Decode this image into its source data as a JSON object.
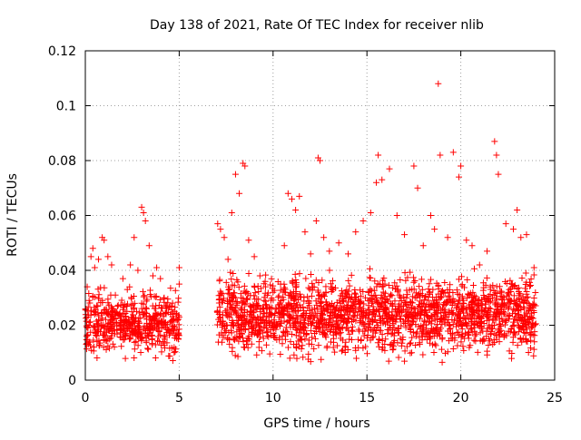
{
  "chart_data": {
    "type": "scatter",
    "title": "Day 138 of 2021, Rate Of TEC Index for receiver nlib",
    "xlabel": "GPS time / hours",
    "ylabel": "ROTI / TECUs",
    "xlim": [
      0,
      25
    ],
    "ylim": [
      0,
      0.12
    ],
    "x_ticks": [
      0,
      5,
      10,
      15,
      20,
      25
    ],
    "x_tick_labels": [
      "0",
      "5",
      "10",
      "15",
      "20",
      "25"
    ],
    "y_ticks": [
      0,
      0.02,
      0.04,
      0.06,
      0.08,
      0.1,
      0.12
    ],
    "y_tick_labels": [
      "0",
      "0.02",
      "0.04",
      "0.06",
      "0.08",
      "0.1",
      "0.12"
    ],
    "grid": true,
    "marker": "plus",
    "series": [
      {
        "name": "ROTI",
        "color": "#ff0000",
        "points": [
          [
            0.05,
            0.013
          ],
          [
            0.1,
            0.034
          ],
          [
            0.2,
            0.029
          ],
          [
            0.3,
            0.045
          ],
          [
            0.4,
            0.048
          ],
          [
            0.5,
            0.041
          ],
          [
            0.7,
            0.044
          ],
          [
            0.9,
            0.052
          ],
          [
            1.0,
            0.051
          ],
          [
            1.2,
            0.045
          ],
          [
            1.4,
            0.042
          ],
          [
            1.6,
            0.031
          ],
          [
            2.0,
            0.037
          ],
          [
            2.4,
            0.042
          ],
          [
            2.6,
            0.052
          ],
          [
            2.8,
            0.04
          ],
          [
            3.0,
            0.063
          ],
          [
            3.1,
            0.061
          ],
          [
            3.2,
            0.058
          ],
          [
            3.4,
            0.049
          ],
          [
            3.6,
            0.038
          ],
          [
            3.8,
            0.041
          ],
          [
            4.0,
            0.037
          ],
          [
            4.2,
            0.03
          ],
          [
            4.5,
            0.027
          ],
          [
            4.9,
            0.022
          ],
          [
            5.0,
            0.041
          ],
          [
            5.0,
            0.035
          ],
          [
            7.05,
            0.057
          ],
          [
            7.2,
            0.055
          ],
          [
            7.4,
            0.052
          ],
          [
            7.6,
            0.044
          ],
          [
            7.8,
            0.061
          ],
          [
            8.0,
            0.075
          ],
          [
            8.2,
            0.068
          ],
          [
            8.4,
            0.079
          ],
          [
            8.5,
            0.078
          ],
          [
            8.7,
            0.051
          ],
          [
            9.0,
            0.045
          ],
          [
            9.3,
            0.038
          ],
          [
            9.6,
            0.034
          ],
          [
            10.0,
            0.032
          ],
          [
            10.4,
            0.035
          ],
          [
            10.6,
            0.049
          ],
          [
            10.8,
            0.068
          ],
          [
            11.0,
            0.066
          ],
          [
            11.2,
            0.062
          ],
          [
            11.4,
            0.067
          ],
          [
            11.7,
            0.054
          ],
          [
            12.0,
            0.046
          ],
          [
            12.3,
            0.058
          ],
          [
            12.4,
            0.081
          ],
          [
            12.5,
            0.08
          ],
          [
            12.7,
            0.052
          ],
          [
            13.0,
            0.047
          ],
          [
            13.5,
            0.05
          ],
          [
            14.0,
            0.046
          ],
          [
            14.4,
            0.054
          ],
          [
            14.8,
            0.058
          ],
          [
            15.2,
            0.061
          ],
          [
            15.5,
            0.072
          ],
          [
            15.6,
            0.082
          ],
          [
            15.8,
            0.073
          ],
          [
            16.2,
            0.077
          ],
          [
            16.6,
            0.06
          ],
          [
            17.0,
            0.053
          ],
          [
            17.5,
            0.078
          ],
          [
            17.7,
            0.07
          ],
          [
            18.0,
            0.049
          ],
          [
            18.4,
            0.06
          ],
          [
            18.6,
            0.055
          ],
          [
            18.8,
            0.108
          ],
          [
            18.9,
            0.082
          ],
          [
            19.3,
            0.052
          ],
          [
            19.6,
            0.083
          ],
          [
            19.9,
            0.074
          ],
          [
            20.0,
            0.078
          ],
          [
            20.3,
            0.051
          ],
          [
            20.6,
            0.049
          ],
          [
            21.0,
            0.042
          ],
          [
            21.4,
            0.047
          ],
          [
            21.8,
            0.087
          ],
          [
            21.9,
            0.082
          ],
          [
            22.0,
            0.075
          ],
          [
            22.4,
            0.057
          ],
          [
            22.8,
            0.055
          ],
          [
            23.0,
            0.062
          ],
          [
            23.2,
            0.052
          ],
          [
            23.5,
            0.053
          ],
          [
            23.9,
            0.041
          ]
        ],
        "baseline_ranges": [
          {
            "x_start": 0.0,
            "x_end": 5.0,
            "y_min": 0.005,
            "y_max": 0.036,
            "count": 520
          },
          {
            "x_start": 7.0,
            "x_end": 24.0,
            "y_min": 0.005,
            "y_max": 0.042,
            "count": 1900
          }
        ]
      }
    ]
  }
}
